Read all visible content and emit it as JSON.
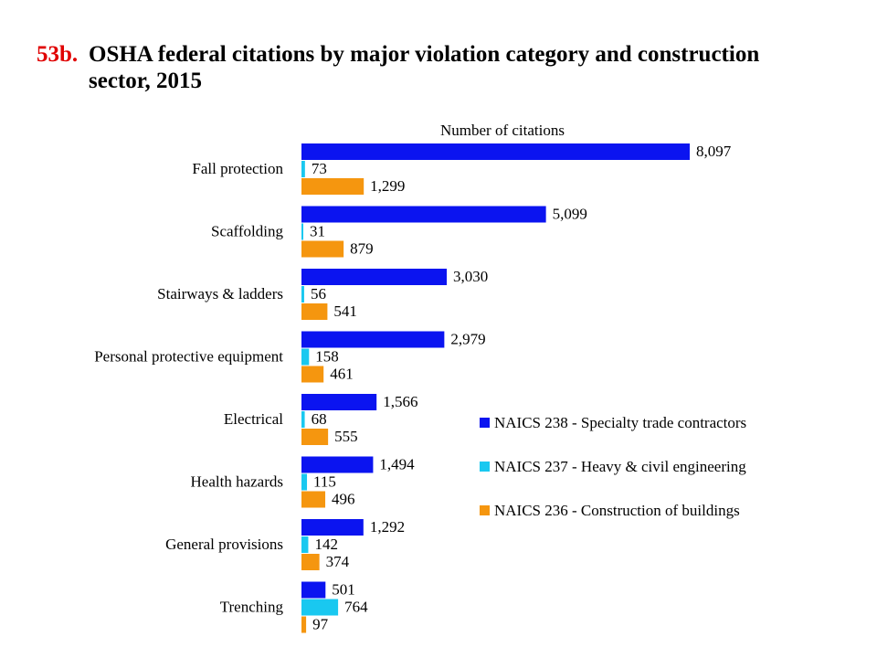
{
  "title": {
    "number": "53b.",
    "line1": "OSHA federal citations by major violation category and construction",
    "line2": "sector, 2015"
  },
  "chart_data": {
    "type": "bar",
    "orientation": "horizontal",
    "axis_title": "Number of citations",
    "categories": [
      "Fall protection",
      "Scaffolding",
      "Stairways & ladders",
      "Personal protective equipment",
      "Electrical",
      "Health hazards",
      "General provisions",
      "Trenching"
    ],
    "series": [
      {
        "name": "NAICS 238 - Specialty trade contractors",
        "color": "#0b14f0",
        "values": [
          8097,
          5099,
          3030,
          2979,
          1566,
          1494,
          1292,
          501
        ],
        "labels": [
          "8,097",
          "5,099",
          "3,030",
          "2,979",
          "1,566",
          "1,494",
          "1,292",
          "501"
        ]
      },
      {
        "name": "NAICS 237 - Heavy & civil engineering",
        "color": "#19c8f0",
        "values": [
          73,
          31,
          56,
          158,
          68,
          115,
          142,
          764
        ],
        "labels": [
          "73",
          "31",
          "56",
          "158",
          "68",
          "115",
          "142",
          "764"
        ]
      },
      {
        "name": "NAICS 236 - Construction of buildings",
        "color": "#f5960f",
        "values": [
          1299,
          879,
          541,
          461,
          555,
          496,
          374,
          97
        ],
        "labels": [
          "1,299",
          "879",
          "541",
          "461",
          "555",
          "496",
          "374",
          "97"
        ]
      }
    ],
    "legend_position": "right"
  }
}
